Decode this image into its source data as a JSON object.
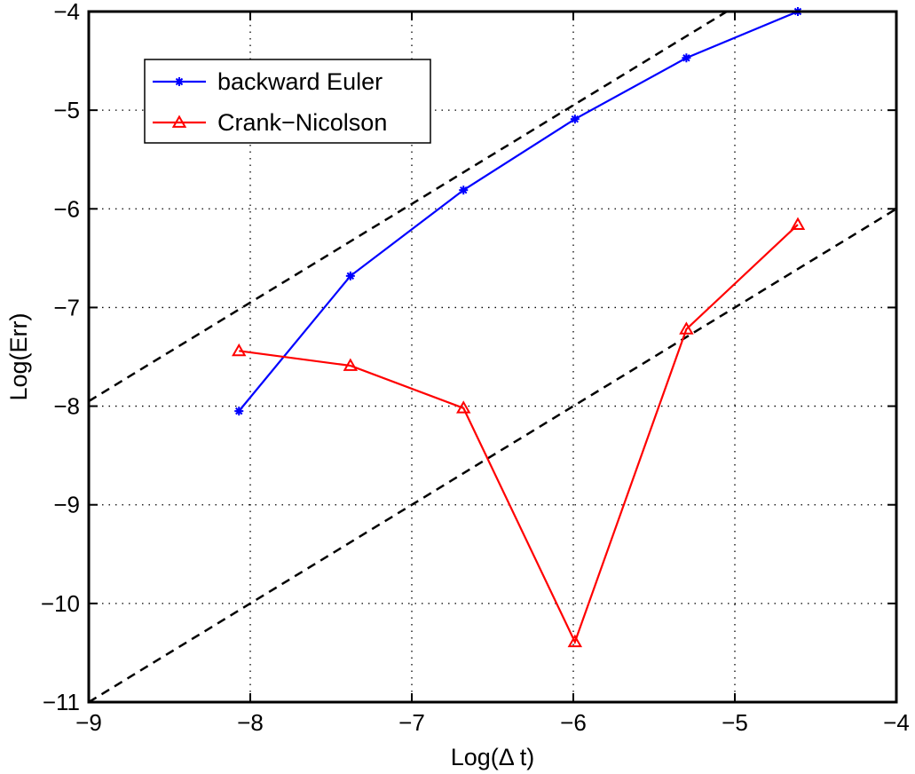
{
  "chart_data": {
    "type": "line",
    "xlabel": "Log(Δ t)",
    "ylabel": "Log(Err)",
    "xlim": [
      -9,
      -4
    ],
    "ylim": [
      -11,
      -4
    ],
    "xticks": [
      -9,
      -8,
      -7,
      -6,
      -5,
      -4
    ],
    "yticks": [
      -11,
      -10,
      -9,
      -8,
      -7,
      -6,
      -5,
      -4
    ],
    "xtick_labels": [
      "−9",
      "−8",
      "−7",
      "−6",
      "−5",
      "−4"
    ],
    "ytick_labels": [
      "−11",
      "−10",
      "−9",
      "−8",
      "−7",
      "−6",
      "−5",
      "−4"
    ],
    "grid": true,
    "legend_position": "top-left",
    "series": [
      {
        "name": "backward Euler",
        "color": "#0000ff",
        "marker": "asterisk",
        "x": [
          -8.07,
          -7.38,
          -6.68,
          -5.99,
          -5.3,
          -4.61
        ],
        "y": [
          -8.05,
          -6.68,
          -5.81,
          -5.09,
          -4.47,
          -4.0
        ]
      },
      {
        "name": "Crank−Nicolson",
        "color": "#ff0000",
        "marker": "triangle",
        "x": [
          -8.07,
          -7.38,
          -6.68,
          -5.99,
          -5.3,
          -4.61
        ],
        "y": [
          -7.44,
          -7.59,
          -8.02,
          -10.39,
          -7.22,
          -6.16
        ]
      }
    ],
    "reference_lines": [
      {
        "style": "dashed",
        "color": "#000000",
        "x": [
          -9,
          -4.89
        ],
        "y": [
          -7.95,
          -3.84
        ]
      },
      {
        "style": "dashed",
        "color": "#000000",
        "x": [
          -9,
          -4
        ],
        "y": [
          -11,
          -6
        ]
      }
    ]
  }
}
